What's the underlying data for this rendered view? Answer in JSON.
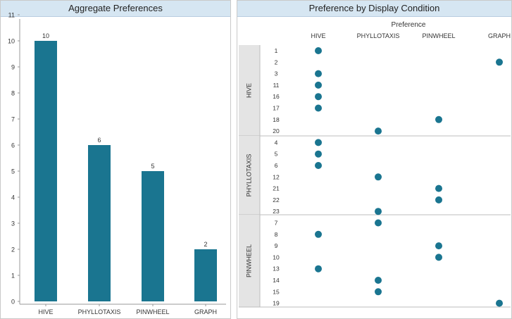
{
  "left_panel": {
    "title": "Aggregate Preferences"
  },
  "right_panel": {
    "title": "Preference by Display Condition",
    "column_group_label": "Preference"
  },
  "colors": {
    "accent": "#1a7590",
    "header_bg": "#d6e6f2",
    "band": "#e4e4e4"
  },
  "chart_data": [
    {
      "type": "bar",
      "title": "Aggregate Preferences",
      "categories": [
        "HIVE",
        "PHYLLOTAXIS",
        "PINWHEEL",
        "GRAPH"
      ],
      "values": [
        10,
        6,
        5,
        2
      ],
      "data_labels": [
        "10",
        "6",
        "5",
        "2"
      ],
      "y_ticks": [
        "0",
        "1",
        "2",
        "3",
        "4",
        "5",
        "6",
        "7",
        "8",
        "9",
        "10",
        "11"
      ],
      "ylim": [
        0,
        11
      ],
      "grid": false
    },
    {
      "type": "scatter",
      "title": "Preference by Display Condition",
      "x_title": "Preference",
      "columns": [
        "HIVE",
        "PHYLLOTAXIS",
        "PINWHEEL",
        "GRAPH"
      ],
      "groups": [
        {
          "name": "HIVE",
          "rows": [
            {
              "id": "1",
              "pref": "HIVE"
            },
            {
              "id": "2",
              "pref": "GRAPH"
            },
            {
              "id": "3",
              "pref": "HIVE"
            },
            {
              "id": "11",
              "pref": "HIVE"
            },
            {
              "id": "16",
              "pref": "HIVE"
            },
            {
              "id": "17",
              "pref": "HIVE"
            },
            {
              "id": "18",
              "pref": "PINWHEEL"
            },
            {
              "id": "20",
              "pref": "PHYLLOTAXIS"
            }
          ]
        },
        {
          "name": "PHYLLOTAXIS",
          "rows": [
            {
              "id": "4",
              "pref": "HIVE"
            },
            {
              "id": "5",
              "pref": "HIVE"
            },
            {
              "id": "6",
              "pref": "HIVE"
            },
            {
              "id": "12",
              "pref": "PHYLLOTAXIS"
            },
            {
              "id": "21",
              "pref": "PINWHEEL"
            },
            {
              "id": "22",
              "pref": "PINWHEEL"
            },
            {
              "id": "23",
              "pref": "PHYLLOTAXIS"
            }
          ]
        },
        {
          "name": "PINWHEEL",
          "rows": [
            {
              "id": "7",
              "pref": "PHYLLOTAXIS"
            },
            {
              "id": "8",
              "pref": "HIVE"
            },
            {
              "id": "9",
              "pref": "PINWHEEL"
            },
            {
              "id": "10",
              "pref": "PINWHEEL"
            },
            {
              "id": "13",
              "pref": "HIVE"
            },
            {
              "id": "14",
              "pref": "PHYLLOTAXIS"
            },
            {
              "id": "15",
              "pref": "PHYLLOTAXIS"
            },
            {
              "id": "19",
              "pref": "GRAPH"
            }
          ]
        }
      ]
    }
  ]
}
